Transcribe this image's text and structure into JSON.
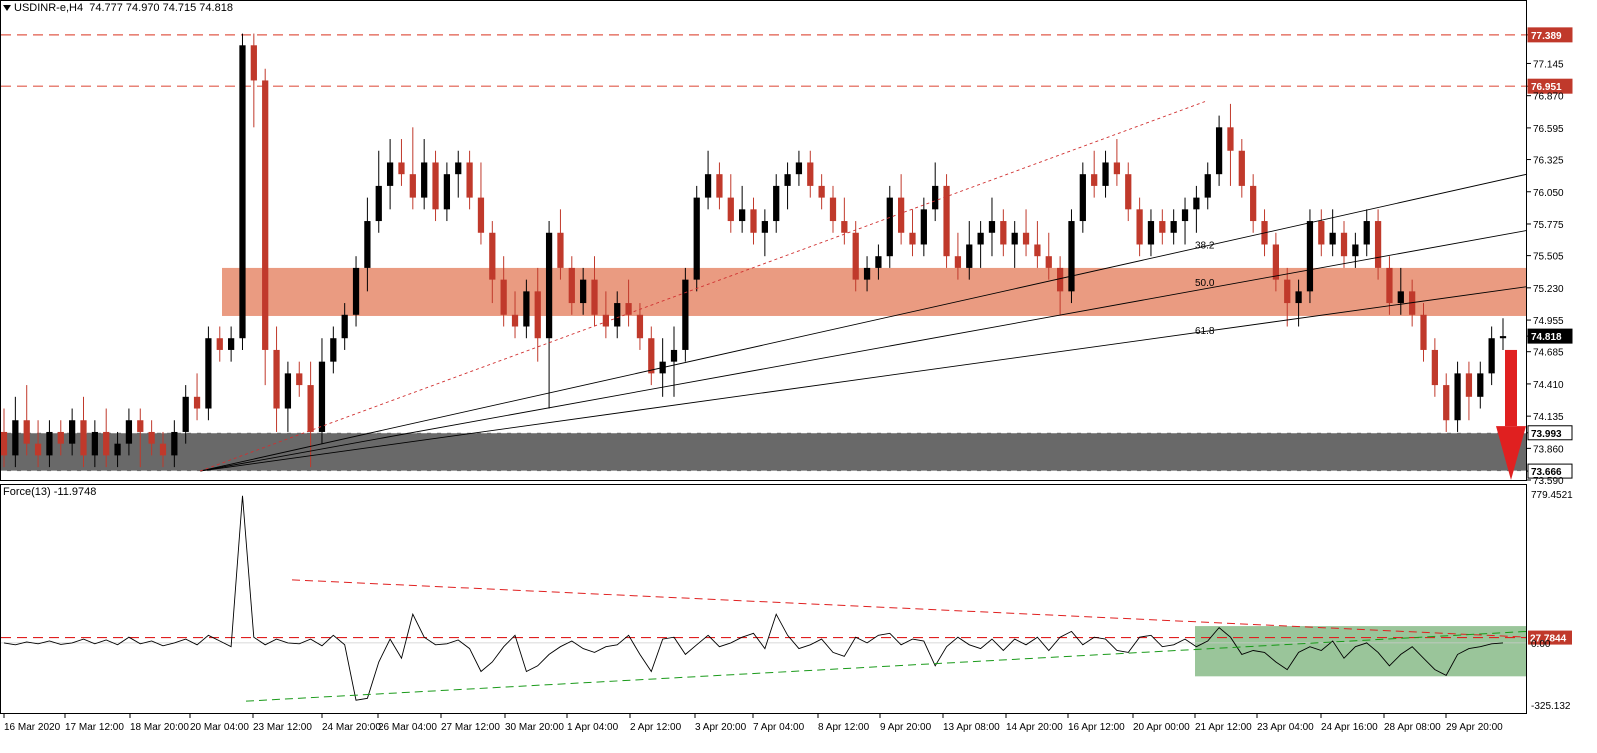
{
  "header": {
    "symbol": "USDINR-e,H4",
    "ohlc": "74.777 74.970 74.715 74.818"
  },
  "indicator": {
    "label": "Force(13) -11.9748"
  },
  "colors": {
    "bull_candle": "#000000",
    "bear_candle": "#c0392b",
    "resistance": "#e05a4a",
    "resistance_zone": "#e9967a",
    "support_zone": "#696969",
    "arrow": "#e02020",
    "trend_up": "#1a9a1a",
    "force_zone": "#8fbf8f"
  },
  "chart_data": [
    {
      "type": "candlestick",
      "title": "USDINR-e,H4",
      "ylim": [
        73.59,
        77.55
      ],
      "grid": false,
      "price_ticks": [
        "77.389",
        "77.145",
        "76.951",
        "76.870",
        "76.595",
        "76.325",
        "76.050",
        "75.775",
        "75.505",
        "75.230",
        "74.955",
        "74.818",
        "74.685",
        "74.410",
        "74.135",
        "73.993",
        "73.860",
        "73.666",
        "73.590"
      ],
      "highlighted_levels": [
        {
          "value": 77.389,
          "label": "77.389",
          "style": "resistance"
        },
        {
          "value": 76.951,
          "label": "76.951",
          "style": "resistance"
        },
        {
          "value": 74.818,
          "label": "74.818",
          "style": "current"
        },
        {
          "value": 73.993,
          "label": "73.993",
          "style": "support"
        },
        {
          "value": 73.666,
          "label": "73.666",
          "style": "support"
        }
      ],
      "x_labels": [
        "16 Mar 2020",
        "17 Mar 12:00",
        "18 Mar 20:00",
        "20 Mar 04:00",
        "23 Mar 12:00",
        "24 Mar 20:00",
        "26 Mar 04:00",
        "27 Mar 12:00",
        "30 Mar 20:00",
        "1 Apr 04:00",
        "2 Apr 12:00",
        "3 Apr 20:00",
        "7 Apr 04:00",
        "8 Apr 12:00",
        "9 Apr 20:00",
        "13 Apr 08:00",
        "14 Apr 20:00",
        "16 Apr 12:00",
        "20 Apr 00:00",
        "21 Apr 12:00",
        "23 Apr 04:00",
        "24 Apr 16:00",
        "28 Apr 08:00",
        "29 Apr 20:00"
      ],
      "resistance_zone": [
        74.99,
        75.4
      ],
      "support_zone": [
        73.666,
        73.993
      ],
      "fib_labels": [
        {
          "label": "38.2",
          "value": 75.6
        },
        {
          "label": "50.0",
          "value": 75.28
        },
        {
          "label": "61.8",
          "value": 74.87
        }
      ],
      "candles": [
        [
          74.0,
          74.2,
          73.7,
          73.8
        ],
        [
          73.8,
          74.3,
          73.7,
          74.1
        ],
        [
          74.1,
          74.4,
          73.8,
          73.9
        ],
        [
          73.9,
          74.1,
          73.7,
          73.8
        ],
        [
          73.8,
          74.1,
          73.7,
          74.0
        ],
        [
          74.0,
          74.1,
          73.8,
          73.9
        ],
        [
          73.9,
          74.2,
          73.8,
          74.1
        ],
        [
          74.1,
          74.3,
          73.7,
          73.8
        ],
        [
          73.8,
          74.1,
          73.7,
          74.0
        ],
        [
          74.0,
          74.2,
          73.7,
          73.8
        ],
        [
          73.8,
          74.0,
          73.7,
          73.9
        ],
        [
          73.9,
          74.2,
          73.8,
          74.1
        ],
        [
          74.1,
          74.2,
          73.7,
          74.0
        ],
        [
          74.0,
          74.1,
          73.8,
          73.9
        ],
        [
          73.9,
          74.0,
          73.7,
          73.8
        ],
        [
          73.8,
          74.1,
          73.7,
          74.0
        ],
        [
          74.0,
          74.4,
          73.9,
          74.3
        ],
        [
          74.3,
          74.5,
          74.1,
          74.2
        ],
        [
          74.2,
          74.9,
          74.1,
          74.8
        ],
        [
          74.8,
          74.9,
          74.6,
          74.7
        ],
        [
          74.7,
          74.9,
          74.6,
          74.8
        ],
        [
          74.8,
          77.4,
          74.7,
          77.3
        ],
        [
          77.3,
          77.4,
          76.6,
          77.0
        ],
        [
          77.0,
          77.1,
          74.4,
          74.7
        ],
        [
          74.7,
          74.9,
          74.0,
          74.2
        ],
        [
          74.2,
          74.6,
          74.0,
          74.5
        ],
        [
          74.5,
          74.6,
          74.3,
          74.4
        ],
        [
          74.4,
          74.6,
          73.7,
          74.0
        ],
        [
          74.0,
          74.8,
          73.9,
          74.6
        ],
        [
          74.6,
          74.9,
          74.5,
          74.8
        ],
        [
          74.8,
          75.1,
          74.7,
          75.0
        ],
        [
          75.0,
          75.5,
          74.9,
          75.4
        ],
        [
          75.4,
          76.0,
          75.2,
          75.8
        ],
        [
          75.8,
          76.4,
          75.7,
          76.1
        ],
        [
          76.1,
          76.5,
          75.9,
          76.3
        ],
        [
          76.3,
          76.5,
          76.1,
          76.2
        ],
        [
          76.2,
          76.6,
          75.9,
          76.0
        ],
        [
          76.0,
          76.5,
          75.9,
          76.3
        ],
        [
          76.3,
          76.4,
          75.8,
          75.9
        ],
        [
          75.9,
          76.3,
          75.8,
          76.2
        ],
        [
          76.2,
          76.4,
          76.0,
          76.3
        ],
        [
          76.3,
          76.4,
          75.9,
          76.0
        ],
        [
          76.0,
          76.3,
          75.6,
          75.7
        ],
        [
          75.7,
          75.8,
          75.1,
          75.3
        ],
        [
          75.3,
          75.5,
          74.9,
          75.0
        ],
        [
          75.0,
          75.2,
          74.8,
          74.9
        ],
        [
          74.9,
          75.3,
          74.8,
          75.2
        ],
        [
          75.2,
          75.4,
          74.6,
          74.8
        ],
        [
          74.8,
          75.8,
          74.2,
          75.7
        ],
        [
          75.7,
          75.9,
          75.3,
          75.4
        ],
        [
          75.4,
          75.5,
          75.0,
          75.1
        ],
        [
          75.1,
          75.4,
          75.0,
          75.3
        ],
        [
          75.3,
          75.5,
          74.9,
          75.0
        ],
        [
          75.0,
          75.2,
          74.8,
          74.9
        ],
        [
          74.9,
          75.2,
          74.8,
          75.1
        ],
        [
          75.1,
          75.3,
          74.9,
          75.0
        ],
        [
          75.0,
          75.1,
          74.7,
          74.8
        ],
        [
          74.8,
          74.9,
          74.4,
          74.5
        ],
        [
          74.5,
          74.8,
          74.3,
          74.6
        ],
        [
          74.6,
          74.9,
          74.3,
          74.7
        ],
        [
          74.7,
          75.4,
          74.6,
          75.3
        ],
        [
          75.3,
          76.1,
          75.2,
          76.0
        ],
        [
          76.0,
          76.4,
          75.9,
          76.2
        ],
        [
          76.2,
          76.3,
          75.9,
          76.0
        ],
        [
          76.0,
          76.2,
          75.7,
          75.8
        ],
        [
          75.8,
          76.1,
          75.7,
          75.9
        ],
        [
          75.9,
          76.0,
          75.6,
          75.7
        ],
        [
          75.7,
          75.9,
          75.5,
          75.8
        ],
        [
          75.8,
          76.2,
          75.7,
          76.1
        ],
        [
          76.1,
          76.3,
          75.9,
          76.2
        ],
        [
          76.2,
          76.4,
          76.1,
          76.3
        ],
        [
          76.3,
          76.4,
          76.0,
          76.1
        ],
        [
          76.1,
          76.2,
          75.9,
          76.0
        ],
        [
          76.0,
          76.1,
          75.7,
          75.8
        ],
        [
          75.8,
          76.0,
          75.6,
          75.7
        ],
        [
          75.7,
          75.8,
          75.2,
          75.3
        ],
        [
          75.3,
          75.5,
          75.2,
          75.4
        ],
        [
          75.4,
          75.6,
          75.3,
          75.5
        ],
        [
          75.5,
          76.1,
          75.4,
          76.0
        ],
        [
          76.0,
          76.2,
          75.6,
          75.7
        ],
        [
          75.7,
          75.9,
          75.5,
          75.6
        ],
        [
          75.6,
          76.0,
          75.5,
          75.9
        ],
        [
          75.9,
          76.3,
          75.8,
          76.1
        ],
        [
          76.1,
          76.2,
          75.4,
          75.5
        ],
        [
          75.5,
          75.7,
          75.3,
          75.4
        ],
        [
          75.4,
          75.8,
          75.3,
          75.6
        ],
        [
          75.6,
          75.8,
          75.4,
          75.7
        ],
        [
          75.7,
          76.0,
          75.5,
          75.8
        ],
        [
          75.8,
          75.9,
          75.5,
          75.6
        ],
        [
          75.6,
          75.8,
          75.4,
          75.7
        ],
        [
          75.7,
          75.9,
          75.5,
          75.6
        ],
        [
          75.6,
          75.8,
          75.4,
          75.5
        ],
        [
          75.5,
          75.7,
          75.3,
          75.4
        ],
        [
          75.4,
          75.5,
          75.0,
          75.2
        ],
        [
          75.2,
          75.9,
          75.1,
          75.8
        ],
        [
          75.8,
          76.3,
          75.7,
          76.2
        ],
        [
          76.2,
          76.4,
          76.0,
          76.1
        ],
        [
          76.1,
          76.4,
          76.0,
          76.3
        ],
        [
          76.3,
          76.5,
          76.1,
          76.2
        ],
        [
          76.2,
          76.3,
          75.8,
          75.9
        ],
        [
          75.9,
          76.0,
          75.5,
          75.6
        ],
        [
          75.6,
          75.9,
          75.5,
          75.8
        ],
        [
          75.8,
          75.9,
          75.6,
          75.7
        ],
        [
          75.7,
          75.9,
          75.6,
          75.8
        ],
        [
          75.8,
          76.0,
          75.6,
          75.9
        ],
        [
          75.9,
          76.1,
          75.7,
          76.0
        ],
        [
          76.0,
          76.3,
          75.9,
          76.2
        ],
        [
          76.2,
          76.7,
          76.1,
          76.6
        ],
        [
          76.6,
          76.8,
          76.1,
          76.4
        ],
        [
          76.4,
          76.5,
          76.0,
          76.1
        ],
        [
          76.1,
          76.2,
          75.7,
          75.8
        ],
        [
          75.8,
          75.9,
          75.5,
          75.6
        ],
        [
          75.6,
          75.7,
          75.2,
          75.3
        ],
        [
          75.3,
          75.4,
          74.9,
          75.1
        ],
        [
          75.1,
          75.3,
          74.9,
          75.2
        ],
        [
          75.2,
          75.9,
          75.1,
          75.8
        ],
        [
          75.8,
          75.9,
          75.5,
          75.6
        ],
        [
          75.6,
          75.9,
          75.5,
          75.7
        ],
        [
          75.7,
          75.8,
          75.4,
          75.5
        ],
        [
          75.5,
          75.7,
          75.4,
          75.6
        ],
        [
          75.6,
          75.9,
          75.5,
          75.8
        ],
        [
          75.8,
          75.9,
          75.3,
          75.4
        ],
        [
          75.4,
          75.5,
          75.0,
          75.1
        ],
        [
          75.1,
          75.4,
          75.0,
          75.2
        ],
        [
          75.2,
          75.3,
          74.9,
          75.0
        ],
        [
          75.0,
          75.1,
          74.6,
          74.7
        ],
        [
          74.7,
          74.8,
          74.3,
          74.4
        ],
        [
          74.4,
          74.5,
          74.0,
          74.1
        ],
        [
          74.1,
          74.6,
          74.0,
          74.5
        ],
        [
          74.5,
          74.6,
          74.1,
          74.3
        ],
        [
          74.3,
          74.6,
          74.2,
          74.5
        ],
        [
          74.5,
          74.9,
          74.4,
          74.8
        ],
        [
          74.8,
          74.97,
          74.7,
          74.818
        ]
      ],
      "y_label": "",
      "x_label": ""
    },
    {
      "type": "line",
      "title": "Force(13) -11.9748",
      "ylim": [
        -325.132,
        779.4521
      ],
      "ticks": [
        "779.4521",
        "27.7844",
        "0.00",
        "-325.132"
      ],
      "highlighted_level": {
        "value": 27.7844,
        "label": "27.7844"
      },
      "series": [
        {
          "values": [
            0,
            -10,
            5,
            -5,
            10,
            -8,
            0,
            20,
            -5,
            15,
            -10,
            30,
            -5,
            10,
            -15,
            0,
            20,
            -10,
            40,
            10,
            -20,
            770,
            30,
            -10,
            20,
            0,
            -5,
            20,
            -15,
            40,
            -10,
            -300,
            -290,
            -100,
            20,
            -80,
            150,
            30,
            -10,
            -5,
            15,
            -30,
            -150,
            -100,
            -20,
            40,
            -150,
            -120,
            -60,
            -20,
            10,
            -30,
            -50,
            -20,
            -10,
            40,
            -60,
            -150,
            20,
            30,
            -60,
            -10,
            40,
            -20,
            0,
            30,
            50,
            -30,
            150,
            40,
            -30,
            -10,
            20,
            -50,
            -70,
            30,
            0,
            40,
            50,
            -10,
            20,
            10,
            -120,
            -20,
            30,
            -10,
            -30,
            20,
            -40,
            20,
            -10,
            30,
            -40,
            30,
            60,
            -10,
            30,
            20,
            -40,
            -50,
            30,
            40,
            -20,
            -10,
            20,
            -20,
            10,
            80,
            30,
            -60,
            -40,
            -50,
            -100,
            -140,
            -50,
            -20,
            -40,
            10,
            -80,
            -20,
            0,
            -50,
            -120,
            -60,
            -20,
            -80,
            -140,
            -170,
            -60,
            -30,
            -20,
            -5,
            0
          ]
        }
      ]
    }
  ]
}
